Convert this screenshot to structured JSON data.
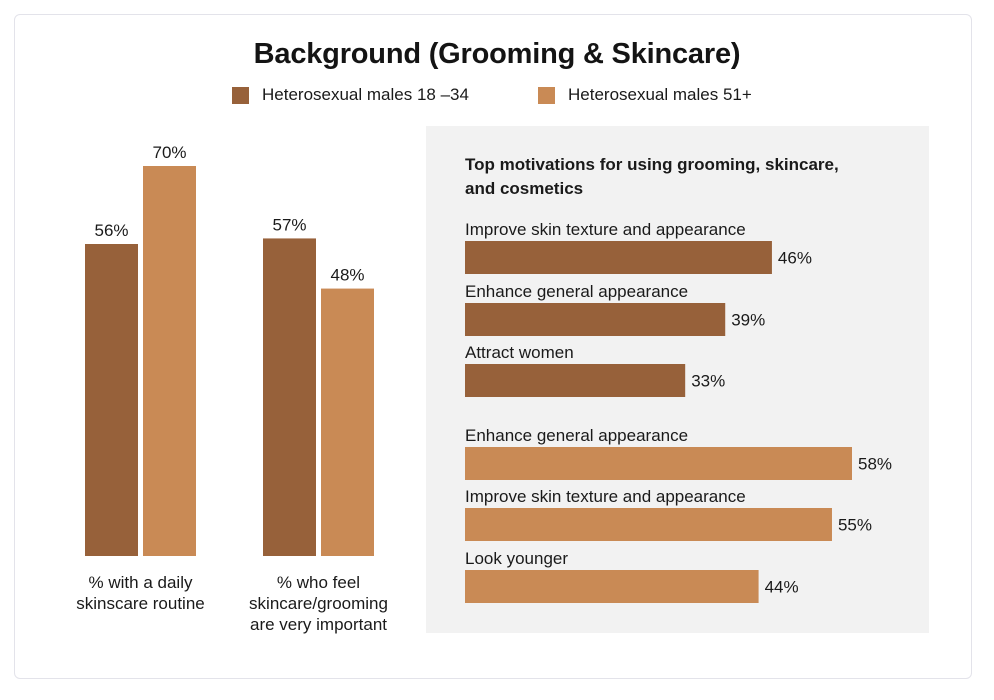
{
  "chart_data": [
    {
      "type": "bar",
      "title": "Background (Grooming & Skincare)",
      "categories": [
        "% with a daily skinscare routine",
        "% who feel skincare/grooming are very important"
      ],
      "category_lines": [
        [
          "% with a daily",
          "skinscare routine"
        ],
        [
          "% who feel",
          "skincare/grooming",
          "are very important"
        ]
      ],
      "series": [
        {
          "name": "Heterosexual males 18 –34",
          "values": [
            56,
            57
          ],
          "labels": [
            "56%",
            "57%"
          ]
        },
        {
          "name": "Heterosexual males 51+",
          "values": [
            70,
            48
          ],
          "labels": [
            "70%",
            "48%"
          ]
        }
      ],
      "ylim": [
        0,
        70
      ],
      "grid": false,
      "legend": "top-center"
    },
    {
      "type": "bar",
      "orientation": "horizontal",
      "title": "Top motivations for using grooming, skincare, and cosmetics",
      "title_lines": [
        "Top motivations for using grooming, skincare,",
        "and cosmetics"
      ],
      "groups": [
        {
          "series": "Heterosexual males 18 –34",
          "items": [
            {
              "label": "Improve skin texture and appearance",
              "value": 46,
              "value_label": "46%"
            },
            {
              "label": "Enhance general appearance",
              "value": 39,
              "value_label": "39%"
            },
            {
              "label": "Attract women",
              "value": 33,
              "value_label": "33%"
            }
          ]
        },
        {
          "series": "Heterosexual males 51+",
          "items": [
            {
              "label": "Enhance general appearance",
              "value": 58,
              "value_label": "58%"
            },
            {
              "label": "Improve skin texture and appearance",
              "value": 55,
              "value_label": "55%"
            },
            {
              "label": "Look younger",
              "value": 44,
              "value_label": "44%"
            }
          ]
        }
      ],
      "xlim": [
        0,
        58
      ],
      "grid": false
    }
  ],
  "colors": {
    "series_young": "#97613a",
    "series_older": "#c98a55",
    "panel_background": "#f2f2f2",
    "text": "#1a1a1a"
  }
}
